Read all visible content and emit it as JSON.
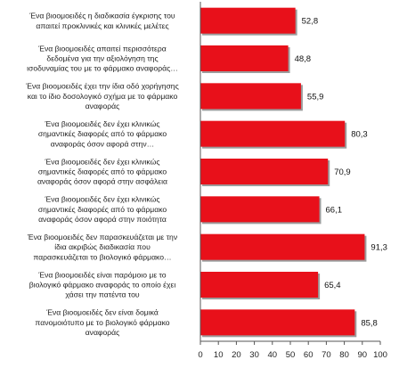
{
  "chart_data": {
    "type": "bar",
    "orientation": "horizontal",
    "categories": [
      [
        "Ένα βιοομοειδές η διαδικασία έγκρισης του",
        "απαιτεί προκλινικές και κλινικές μελέτες"
      ],
      [
        "Ένα βιοομοειδές απαιτεί περισσότερα",
        "δεδομένα για την αξιολόγηση της",
        "ισοδυναμίας του με το φάρμακο αναφοράς…"
      ],
      [
        "Ένα βιοομοειδές έχει την ίδια οδό χορήγησης",
        "και το ίδιο δοσολογικό σχήμα με το φάρμακο",
        "αναφοράς"
      ],
      [
        "Ένα βιοομοειδές δεν έχει κλινικώς",
        "σημαντικές διαφορές από το φάρμακο",
        "αναφοράς όσον αφορά στην…"
      ],
      [
        "Ένα βιοομοειδές δεν έχει κλινικώς",
        "σημαντικές διαφορές από το φάρμακο",
        "αναφοράς όσον αφορά στην ασφάλεια"
      ],
      [
        "Ένα βιοομοειδές δεν έχει κλινικώς",
        "σημαντικές διαφορές από το φάρμακο",
        "αναφοράς όσον αφορά στην ποιότητα"
      ],
      [
        "Ένα βιοομοειδές δεν παρασκευάζεται με την",
        "ίδια ακριβώς διαδικασία που",
        "παρασκευάζεται το βιολογικό φάρμακο…"
      ],
      [
        "Ένα βιοομοειδές είναι παρόμοιο με το",
        "βιολογικό φάρμακο αναφοράς το οποίο έχει",
        "χάσει την πατέντα του"
      ],
      [
        "Ένα βιοομοειδές δεν είναι δομικά",
        "πανομοιότυπο με το βιολογικό φάρμακο",
        "αναφοράς"
      ]
    ],
    "values": [
      52.8,
      48.8,
      55.9,
      80.3,
      70.9,
      66.1,
      91.3,
      65.4,
      85.8
    ],
    "value_labels": [
      "52,8",
      "48,8",
      "55,9",
      "80,3",
      "70,9",
      "66,1",
      "91,3",
      "65,4",
      "85,8"
    ],
    "x_ticks": [
      0,
      10,
      20,
      30,
      40,
      50,
      60,
      70,
      80,
      90,
      100
    ],
    "xlim": [
      0,
      100
    ],
    "title": "",
    "xlabel": "",
    "ylabel": "",
    "grid": false,
    "legend": "none",
    "bar_color": "#e8101a",
    "bar_shadow_color": "#9c9c9c",
    "axis_color": "#555555"
  }
}
